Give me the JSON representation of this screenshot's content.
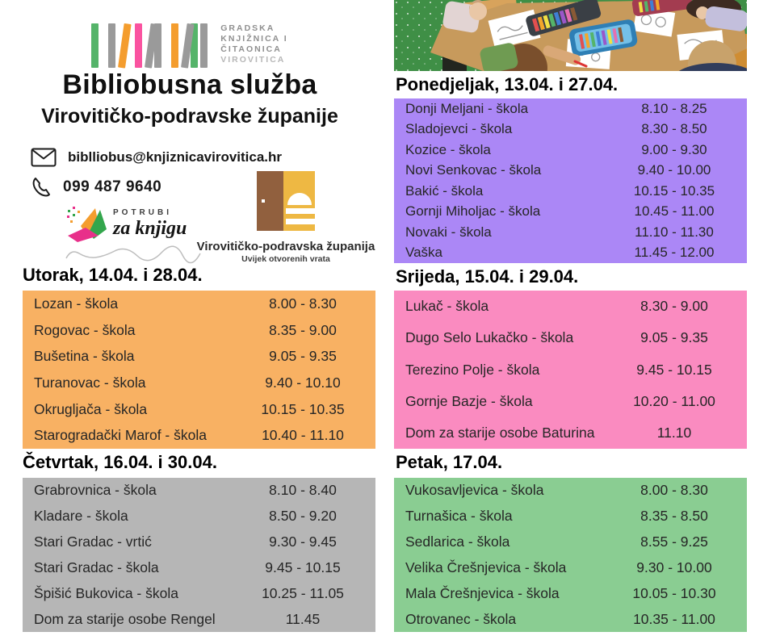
{
  "brand": {
    "library_lines": [
      "GRADSKA",
      "KNJIŽNICA I",
      "ČITAONICA",
      "VIROVITICA"
    ],
    "title": "Bibliobusna služba",
    "subtitle": "Virovitičko-podravske županije",
    "email": "biblliobus@knjiznicavirovitica.hr",
    "phone": "099 487 9640",
    "potrubi_label": "POTRUBI",
    "potrubi_script": "za knjigu",
    "county_name": "Virovitičko-podravska županija",
    "county_motto": "Uvijek otvorenih vrata",
    "logo_bar_groups": [
      [
        {
          "color": "#55b46a",
          "slant": 0
        }
      ],
      [
        {
          "color": "#9a9a9a",
          "slant": 0
        },
        {
          "color": "#f49d2e",
          "slant": 8
        }
      ],
      [
        {
          "color": "#fa53a0",
          "slant": 0
        },
        {
          "color": "#9a9a9a",
          "slant": 8
        },
        {
          "color": "#9a9a9a",
          "slant": 0
        }
      ],
      [
        {
          "color": "#f49d2e",
          "slant": 0
        },
        {
          "color": "#9a9a9a",
          "slant": 8
        },
        {
          "color": "#55b46a",
          "slant": 0
        },
        {
          "color": "#9a9a9a",
          "slant": 0
        }
      ]
    ]
  },
  "icons": {
    "email": "envelope-icon",
    "phone": "phone-handset-icon",
    "library_logo": "book-spines-icon",
    "county_logo": "open-door-icon",
    "photo": "children-colouring-photo"
  },
  "colors": {
    "monday_bg": "#ab87f6",
    "tuesday_bg": "#f8b163",
    "wednesday_bg": "#fa8bc0",
    "thursday_bg": "#b6b6b6",
    "friday_bg": "#8acd92",
    "door_brown": "#91603e",
    "door_yellow": "#eeb843"
  },
  "schedules": [
    {
      "day": "Ponedjeljak, 13.04. i 27.04.",
      "bg": "#ab87f6",
      "rows": [
        {
          "place": "Donji Meljani - škola",
          "time": "8.10 - 8.25"
        },
        {
          "place": "Sladojevci - škola",
          "time": "8.30 - 8.50"
        },
        {
          "place": "Kozice - škola",
          "time": "9.00 - 9.30"
        },
        {
          "place": "Novi Senkovac - škola",
          "time": "9.40 - 10.00"
        },
        {
          "place": "Bakić - škola",
          "time": "10.15 - 10.35"
        },
        {
          "place": "Gornji Miholjac - škola",
          "time": "10.45 - 11.00"
        },
        {
          "place": "Novaki - škola",
          "time": "11.10 - 11.30"
        },
        {
          "place": "Vaška",
          "time": "11.45 - 12.00"
        }
      ]
    },
    {
      "day": "Utorak, 14.04. i 28.04.",
      "bg": "#f8b163",
      "rows": [
        {
          "place": "Lozan - škola",
          "time": "8.00 - 8.30"
        },
        {
          "place": "Rogovac - škola",
          "time": "8.35 - 9.00"
        },
        {
          "place": "Bušetina - škola",
          "time": "9.05 - 9.35"
        },
        {
          "place": "Turanovac - škola",
          "time": "9.40 - 10.10"
        },
        {
          "place": "Okrugljača - škola",
          "time": "10.15 - 10.35"
        },
        {
          "place": "Starogradački Marof - škola",
          "time": "10.40 - 11.10"
        }
      ]
    },
    {
      "day": "Srijeda, 15.04. i 29.04.",
      "bg": "#fa8bc0",
      "rows": [
        {
          "place": "Lukač - škola",
          "time": "8.30 - 9.00"
        },
        {
          "place": "Dugo Selo Lukačko - škola",
          "time": "9.05 - 9.35"
        },
        {
          "place": "Terezino Polje - škola",
          "time": "9.45 - 10.15"
        },
        {
          "place": "Gornje Bazje - škola",
          "time": "10.20 - 11.00"
        },
        {
          "place": "Dom za starije osobe Baturina",
          "time": "11.10"
        }
      ]
    },
    {
      "day": "Četvrtak, 16.04. i 30.04.",
      "bg": "#b6b6b6",
      "rows": [
        {
          "place": "Grabrovnica - škola",
          "time": "8.10 - 8.40"
        },
        {
          "place": "Kladare - škola",
          "time": "8.50 - 9.20"
        },
        {
          "place": "Stari Gradac - vrtić",
          "time": "9.30 - 9.45"
        },
        {
          "place": "Stari Gradac - škola",
          "time": "9.45 - 10.15"
        },
        {
          "place": "Špišić Bukovica - škola",
          "time": "10.25 - 11.05"
        },
        {
          "place": "Dom za starije osobe Rengel",
          "time": "11.45"
        }
      ]
    },
    {
      "day": "Petak, 17.04.",
      "bg": "#8acd92",
      "rows": [
        {
          "place": "Vukosavljevica - škola",
          "time": "8.00 - 8.30"
        },
        {
          "place": "Turnašica - škola",
          "time": "8.35 - 8.50"
        },
        {
          "place": "Sedlarica - škola",
          "time": "8.55 - 9.25"
        },
        {
          "place": "Velika Črešnjevica - škola",
          "time": "9.30 - 10.00"
        },
        {
          "place": "Mala Črešnjevica - škola",
          "time": "10.05 - 10.30"
        },
        {
          "place": "Otrovanec - škola",
          "time": "10.35 - 11.00"
        }
      ]
    }
  ]
}
